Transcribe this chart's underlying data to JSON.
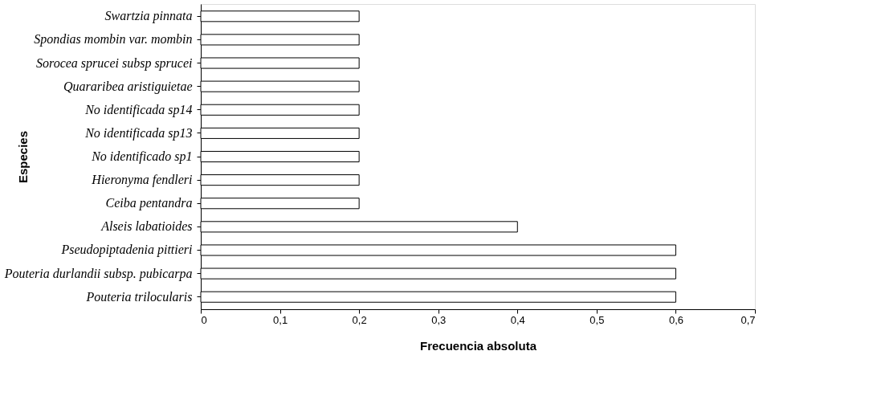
{
  "chart_data": {
    "type": "bar",
    "orientation": "horizontal",
    "xlabel": "Frecuencia absoluta",
    "ylabel": "Especies",
    "categories": [
      "Swartzia pinnata",
      "Spondias mombin var. mombin",
      "Sorocea sprucei subsp sprucei",
      "Quararibea aristiguietae",
      "No identificada sp14",
      "No identificada sp13",
      "No identificado sp1",
      "Hieronyma fendleri",
      "Ceiba pentandra",
      "Alseis labatioides",
      "Pseudopiptadenia pittieri",
      "Pouteria durlandii subsp. pubicarpa",
      "Pouteria trilocularis"
    ],
    "values": [
      0.2,
      0.2,
      0.2,
      0.2,
      0.2,
      0.2,
      0.2,
      0.2,
      0.2,
      0.4,
      0.6,
      0.6,
      0.6
    ],
    "color": "#ffffff",
    "xlim": [
      0,
      0.7
    ],
    "xticks": [
      0,
      {
        "value": 0.1,
        "label": "0,1"
      },
      {
        "value": 0.2,
        "label": "0,2"
      },
      {
        "value": 0.3,
        "label": "0,3"
      },
      {
        "value": 0.4,
        "label": "0,4"
      },
      {
        "value": 0.5,
        "label": "0,5"
      },
      {
        "value": 0.6,
        "label": "0,6"
      },
      {
        "value": 0.7,
        "label": "0,7"
      }
    ],
    "grid": false
  }
}
